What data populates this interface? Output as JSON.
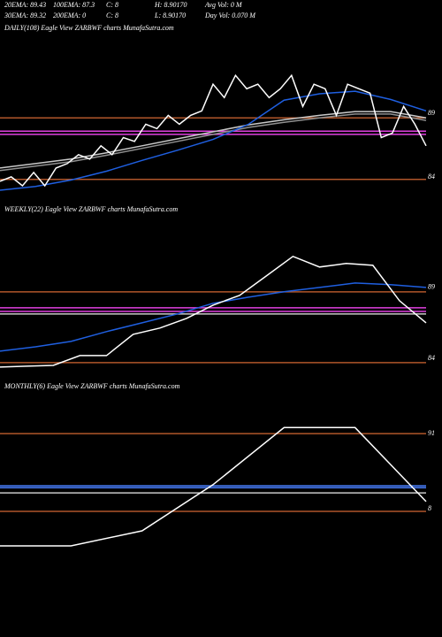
{
  "header": {
    "row1": [
      "20EMA: 89.43",
      "100EMA: 87.3",
      "C: 8",
      "H: 8.90170",
      "Avg Vol: 0 M"
    ],
    "row2": [
      "30EMA: 89.32",
      "200EMA: 0",
      "C: 8",
      "L: 8.90170",
      "Day Vol: 0.070 M"
    ]
  },
  "chart_data": [
    {
      "type": "line",
      "title": "DAILY(108) Eagle  View  ZARBWF charts MunafaSutra.com",
      "ylim": [
        82.6,
        95.5
      ],
      "yticks": [
        89,
        84
      ],
      "hlines": [
        {
          "value": 88.65,
          "color": "#b0562a"
        },
        {
          "value": 87.6,
          "color": "#e040e0"
        },
        {
          "value": 87.35,
          "color": "#e040e0"
        },
        {
          "value": 83.8,
          "color": "#b0562a"
        }
      ],
      "series": [
        {
          "color": "#c8c8c8",
          "values": [
            84.7,
            85.05,
            85.4,
            85.9,
            86.45,
            87.0,
            87.55,
            88.1,
            88.5,
            88.85,
            89.15,
            89.15,
            88.65
          ]
        },
        {
          "color": "#909090",
          "values": [
            84.5,
            84.85,
            85.2,
            85.7,
            86.25,
            86.8,
            87.35,
            87.9,
            88.3,
            88.65,
            88.95,
            88.95,
            88.45
          ]
        },
        {
          "color": "#1f5fe0",
          "values": [
            82.95,
            83.25,
            83.75,
            84.45,
            85.3,
            86.1,
            86.95,
            88.15,
            90.05,
            90.55,
            90.75,
            90.1,
            89.2
          ]
        },
        {
          "color": "#ffffff",
          "values": [
            83.65,
            84.0,
            83.3,
            84.35,
            83.3,
            84.7,
            85.05,
            85.75,
            85.4,
            86.45,
            85.75,
            87.1,
            86.8,
            88.15,
            87.8,
            88.85,
            88.15,
            88.85,
            89.2,
            91.3,
            90.25,
            92.0,
            90.95,
            91.3,
            90.25,
            90.95,
            92.0,
            89.55,
            91.3,
            90.95,
            88.85,
            91.3,
            90.95,
            90.6,
            87.1,
            87.45,
            89.55,
            88.15,
            86.45
          ]
        }
      ]
    },
    {
      "type": "line",
      "title": "WEEKLY(22) Eagle  View  ZARBWF charts MunafaSutra.com",
      "ylim": [
        83.06,
        94.3
      ],
      "yticks": [
        89,
        84
      ],
      "hlines": [
        {
          "value": 88.69,
          "color": "#b0562a"
        },
        {
          "value": 87.56,
          "color": "#e040e0"
        },
        {
          "value": 87.31,
          "color": "#e040e0"
        },
        {
          "value": 87.13,
          "color": "#c8c8c8"
        },
        {
          "value": 83.69,
          "color": "#b0562a"
        }
      ],
      "series": [
        {
          "color": "#1f5fe0",
          "values": [
            84.5,
            84.81,
            85.19,
            85.88,
            86.5,
            87.13,
            87.88,
            88.31,
            88.69,
            89.0,
            89.31,
            89.19,
            89.0
          ]
        },
        {
          "color": "#ffffff",
          "values": [
            83.38,
            83.44,
            83.5,
            84.19,
            84.19,
            85.69,
            86.13,
            86.81,
            87.75,
            88.44,
            89.81,
            91.19,
            90.44,
            90.69,
            90.56,
            88.06,
            86.5
          ]
        }
      ]
    },
    {
      "type": "line",
      "title": "MONTHLY(6) Eagle  View  ZARBWF charts MunafaSutra.com",
      "ylim": [
        87.94,
        92.18
      ],
      "yticks": [
        91,
        {
          "value": 89,
          "label": "8"
        }
      ],
      "hlines": [
        {
          "value": 91,
          "color": "#b0562a"
        },
        {
          "value": 89.61,
          "color": "#4a7fff"
        },
        {
          "value": 89.56,
          "color": "#4a7fff"
        },
        {
          "value": 89.42,
          "color": "#c8c8c8"
        },
        {
          "value": 88.93,
          "color": "#b0562a"
        }
      ],
      "series": [
        {
          "color": "#ffffff",
          "values": [
            88.01,
            88.01,
            88.41,
            89.64,
            91.16,
            91.16,
            89.19
          ]
        }
      ]
    }
  ]
}
